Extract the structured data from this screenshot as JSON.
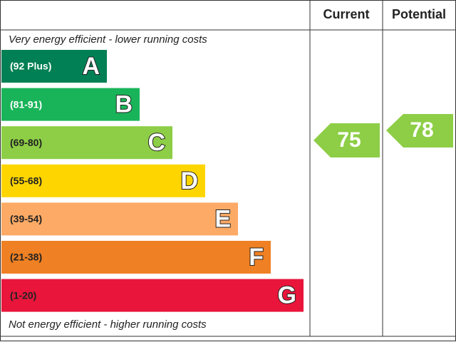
{
  "header": {
    "current": "Current",
    "potential": "Potential"
  },
  "top_note": "Very energy efficient - lower running costs",
  "bottom_note": "Not energy efficient - higher running costs",
  "bands": [
    {
      "range": "(92 Plus)",
      "letter": "A",
      "color": "#008054"
    },
    {
      "range": "(81-91)",
      "letter": "B",
      "color": "#19b459"
    },
    {
      "range": "(69-80)",
      "letter": "C",
      "color": "#8dce46"
    },
    {
      "range": "(55-68)",
      "letter": "D",
      "color": "#ffd500"
    },
    {
      "range": "(39-54)",
      "letter": "E",
      "color": "#fcaa65"
    },
    {
      "range": "(21-38)",
      "letter": "F",
      "color": "#ef8023"
    },
    {
      "range": "(1-20)",
      "letter": "G",
      "color": "#e9153b"
    }
  ],
  "current": {
    "value": 75,
    "color": "#8dce46"
  },
  "potential": {
    "value": 78,
    "color": "#8dce46"
  }
}
